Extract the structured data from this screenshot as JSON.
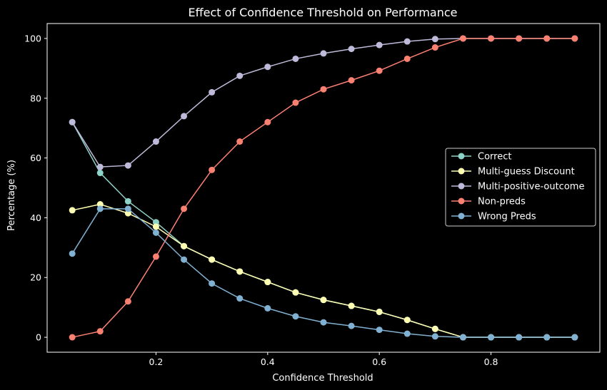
{
  "chart_data": {
    "type": "line",
    "title": "Effect of Confidence Threshold on Performance",
    "xlabel": "Confidence Threshold",
    "ylabel": "Percentage (%)",
    "xlim": [
      0.005,
      0.995
    ],
    "ylim": [
      -5,
      105
    ],
    "xticks": [
      0.2,
      0.4,
      0.6,
      0.8
    ],
    "yticks": [
      0,
      20,
      40,
      60,
      80,
      100
    ],
    "grid": false,
    "legend_position": "center-right",
    "background": "#000000",
    "x": [
      0.05,
      0.1,
      0.15,
      0.2,
      0.25,
      0.3,
      0.35,
      0.4,
      0.45,
      0.5,
      0.55,
      0.6,
      0.65,
      0.7,
      0.75,
      0.8,
      0.85,
      0.9,
      0.95
    ],
    "series": [
      {
        "name": "Correct",
        "color": "#8dd3c7",
        "values": [
          72,
          55,
          45.5,
          38.5,
          30.5,
          26,
          22,
          18.5,
          15,
          12.5,
          10.5,
          8.5,
          5.8,
          2.8,
          0,
          0,
          0,
          0,
          0
        ]
      },
      {
        "name": "Multi-guess Discount",
        "color": "#ffffb3",
        "values": [
          42.5,
          44.5,
          41.5,
          37,
          30.5,
          26,
          22,
          18.5,
          15,
          12.5,
          10.5,
          8.5,
          5.8,
          2.8,
          0,
          0,
          0,
          0,
          0
        ]
      },
      {
        "name": "Multi-positive-outcome",
        "color": "#bebada",
        "values": [
          72,
          57,
          57.5,
          65.5,
          74,
          82,
          87.5,
          90.5,
          93.2,
          95,
          96.5,
          97.8,
          99,
          99.8,
          100,
          100,
          100,
          100,
          100
        ]
      },
      {
        "name": "Non-preds",
        "color": "#fa8072",
        "values": [
          0,
          2,
          12,
          27,
          43,
          56,
          65.5,
          72,
          78.5,
          83,
          86,
          89.2,
          93.2,
          97,
          100,
          100,
          100,
          100,
          100
        ]
      },
      {
        "name": "Wrong Preds",
        "color": "#80b1d3",
        "values": [
          28,
          43,
          43,
          35,
          26,
          18,
          13,
          9.7,
          7,
          5,
          3.8,
          2.5,
          1.2,
          0.3,
          0,
          0,
          0,
          0,
          0
        ]
      }
    ]
  }
}
